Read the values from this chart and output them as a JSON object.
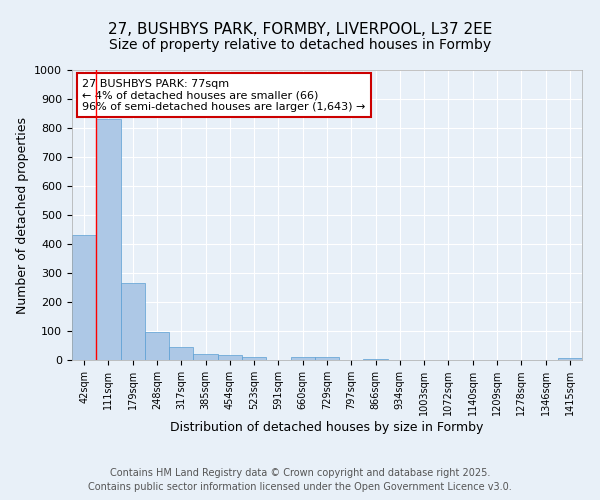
{
  "title": "27, BUSHBYS PARK, FORMBY, LIVERPOOL, L37 2EE",
  "subtitle": "Size of property relative to detached houses in Formby",
  "xlabel": "Distribution of detached houses by size in Formby",
  "ylabel": "Number of detached properties",
  "categories": [
    "42sqm",
    "111sqm",
    "179sqm",
    "248sqm",
    "317sqm",
    "385sqm",
    "454sqm",
    "523sqm",
    "591sqm",
    "660sqm",
    "729sqm",
    "797sqm",
    "866sqm",
    "934sqm",
    "1003sqm",
    "1072sqm",
    "1140sqm",
    "1209sqm",
    "1278sqm",
    "1346sqm",
    "1415sqm"
  ],
  "values": [
    432,
    830,
    265,
    95,
    45,
    22,
    17,
    10,
    0,
    10,
    10,
    0,
    5,
    0,
    0,
    0,
    0,
    0,
    0,
    0,
    8
  ],
  "bar_color": "#adc8e6",
  "bar_edge_color": "#5a9fd4",
  "ylim": [
    0,
    1000
  ],
  "yticks": [
    0,
    100,
    200,
    300,
    400,
    500,
    600,
    700,
    800,
    900,
    1000
  ],
  "red_line_x": 0.5,
  "annotation_text": "27 BUSHBYS PARK: 77sqm\n← 4% of detached houses are smaller (66)\n96% of semi-detached houses are larger (1,643) →",
  "annotation_box_color": "#ffffff",
  "annotation_border_color": "#cc0000",
  "footer_line1": "Contains HM Land Registry data © Crown copyright and database right 2025.",
  "footer_line2": "Contains public sector information licensed under the Open Government Licence v3.0.",
  "background_color": "#e8f0f8",
  "grid_color": "#ffffff",
  "title_fontsize": 11,
  "subtitle_fontsize": 10,
  "tick_fontsize": 7,
  "label_fontsize": 9,
  "footer_fontsize": 7,
  "annot_fontsize": 8
}
